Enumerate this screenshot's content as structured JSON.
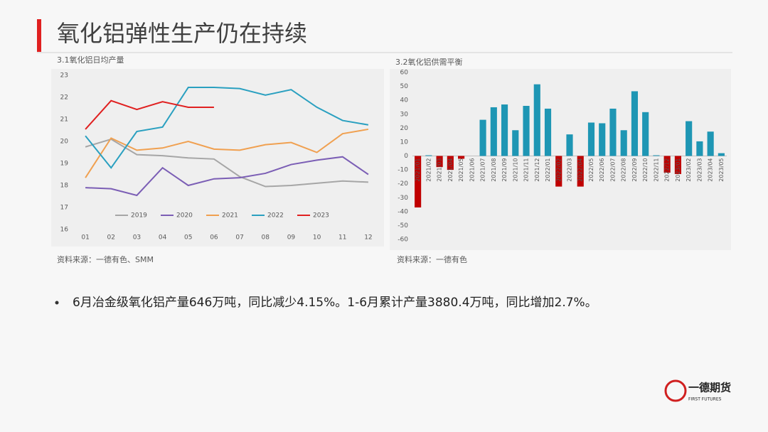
{
  "title": "氧化铝弹性生产仍在持续",
  "chart_data": [
    {
      "type": "line",
      "title": "3.1氧化铝日均产量",
      "categories": [
        "01",
        "02",
        "03",
        "04",
        "05",
        "06",
        "07",
        "08",
        "09",
        "10",
        "11",
        "12"
      ],
      "ylim": [
        16,
        23
      ],
      "yticks": [
        16,
        17,
        18,
        19,
        20,
        21,
        22,
        23
      ],
      "legend": "bottom",
      "series": [
        {
          "name": "2019",
          "color": "#a6a6a6",
          "values": [
            19.75,
            20.1,
            19.4,
            19.35,
            19.25,
            19.2,
            18.4,
            17.95,
            18.0,
            18.1,
            18.2,
            18.15
          ]
        },
        {
          "name": "2020",
          "color": "#7b5eb5",
          "values": [
            17.9,
            17.85,
            17.55,
            18.8,
            18.0,
            18.3,
            18.35,
            18.55,
            18.95,
            19.15,
            19.3,
            18.5
          ]
        },
        {
          "name": "2021",
          "color": "#f0a050",
          "values": [
            18.35,
            20.15,
            19.6,
            19.7,
            20.0,
            19.65,
            19.6,
            19.85,
            19.95,
            19.5,
            20.35,
            20.55
          ]
        },
        {
          "name": "2022",
          "color": "#2aa0c0",
          "values": [
            20.25,
            18.8,
            20.45,
            20.65,
            22.45,
            22.45,
            22.4,
            22.1,
            22.35,
            21.55,
            20.95,
            20.75
          ]
        },
        {
          "name": "2023",
          "color": "#e02020",
          "values": [
            20.55,
            21.85,
            21.45,
            21.8,
            21.55,
            21.55,
            null,
            null,
            null,
            null,
            null,
            null
          ]
        }
      ]
    },
    {
      "type": "bar",
      "title": "3.2氧化铝供需平衡",
      "color": "#1e96b4",
      "negative_color": "#c00000",
      "categories": [
        "2021/01",
        "2021/02",
        "2021/03",
        "2021/04",
        "2021/05",
        "2021/06",
        "2021/07",
        "2021/08",
        "2021/09",
        "2021/10",
        "2021/11",
        "2021/12",
        "2022/01",
        "2022/02",
        "2022/03",
        "2022/04",
        "2022/05",
        "2022/06",
        "2022/07",
        "2022/08",
        "2022/09",
        "2022/10",
        "2022/11",
        "2022/12",
        "2023/01",
        "2023/02",
        "2023/03",
        "2023/04",
        "2023/05"
      ],
      "values": [
        -37,
        0.5,
        -8,
        -10,
        -2,
        0,
        26,
        35,
        37,
        18.5,
        36,
        51.5,
        34,
        -22,
        15.5,
        -22,
        24,
        23.5,
        34,
        18.5,
        46.5,
        31.5,
        0.5,
        -12,
        -13,
        25,
        10.5,
        17.5,
        2
      ],
      "ylim": [
        -60,
        60
      ],
      "yticks": [
        -60,
        -50,
        -40,
        -30,
        -20,
        -10,
        0,
        10,
        20,
        30,
        40,
        50,
        60
      ]
    }
  ],
  "sources": [
    "资料来源：一德有色、SMM",
    "资料来源：一德有色"
  ],
  "bullet": "6月冶金级氧化铝产量646万吨，同比减少4.15%。1-6月累计产量3880.4万吨，同比增加2.7%。",
  "logo": {
    "name": "一德期货",
    "subtitle": "FIRST FUTURES"
  }
}
